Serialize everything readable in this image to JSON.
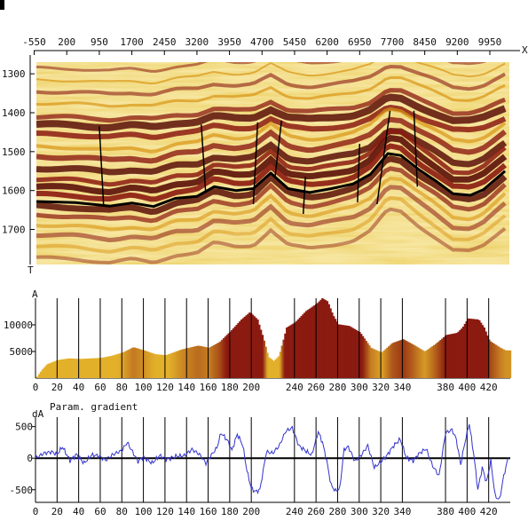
{
  "chart_data": [
    {
      "type": "heatmap",
      "description_role": "seismic-section",
      "xlabel": "X",
      "ylabel": "T",
      "x_ticks": [
        "-550",
        "200",
        "950",
        "1700",
        "2450",
        "3200",
        "3950",
        "4700",
        "5450",
        "6200",
        "6950",
        "7700",
        "8450",
        "9200",
        "9950"
      ],
      "x_tick_values": [
        -550,
        200,
        950,
        1700,
        2450,
        3200,
        3950,
        4700,
        5450,
        6200,
        6950,
        7700,
        8450,
        9200,
        9950
      ],
      "xlim": [
        -500,
        10400
      ],
      "y_ticks": [
        "1300",
        "1400",
        "1500",
        "1600",
        "1700"
      ],
      "y_tick_values": [
        1300,
        1400,
        1500,
        1600,
        1700
      ],
      "ylim": [
        1270,
        1790
      ],
      "colormap": [
        "#fff6c8",
        "#f3cf4a",
        "#d99414",
        "#8b1a10",
        "#5a0f08"
      ],
      "horizon": {
        "name": "picked horizon",
        "color": "#000000",
        "x": [
          -500,
          400,
          1200,
          1700,
          2200,
          2700,
          3200,
          3600,
          4100,
          4500,
          4900,
          5300,
          5800,
          6300,
          6800,
          7200,
          7600,
          7900,
          8300,
          8700,
          9100,
          9500,
          9800,
          10300
        ],
        "t": [
          1628,
          1631,
          1640,
          1632,
          1641,
          1620,
          1615,
          1590,
          1600,
          1595,
          1555,
          1595,
          1605,
          1595,
          1583,
          1558,
          1505,
          1510,
          1545,
          1575,
          1608,
          1612,
          1598,
          1550
        ]
      },
      "faults": [
        {
          "x": [
            950,
            1050
          ],
          "t": [
            1435,
            1640
          ]
        },
        {
          "x": [
            3300,
            3400
          ],
          "t": [
            1430,
            1605
          ]
        },
        {
          "x": [
            4600,
            4500
          ],
          "t": [
            1425,
            1635
          ]
        },
        {
          "x": [
            5150,
            5000
          ],
          "t": [
            1420,
            1565
          ]
        },
        {
          "x": [
            5700,
            5650
          ],
          "t": [
            1565,
            1660
          ]
        },
        {
          "x": [
            6950,
            6900
          ],
          "t": [
            1480,
            1630
          ]
        },
        {
          "x": [
            7650,
            7350
          ],
          "t": [
            1395,
            1635
          ]
        },
        {
          "x": [
            8200,
            8280
          ],
          "t": [
            1395,
            1590
          ]
        }
      ]
    },
    {
      "type": "bar",
      "ylabel": "A",
      "x_ticks": [
        "0",
        "20",
        "40",
        "60",
        "80",
        "100",
        "120",
        "140",
        "160",
        "180",
        "200",
        "240",
        "260",
        "280",
        "300",
        "320",
        "340",
        "380",
        "400",
        "420"
      ],
      "xlim": [
        0,
        440
      ],
      "y_ticks": [
        "5000",
        "10000"
      ],
      "ylim": [
        0,
        15000
      ],
      "x": [
        0,
        5,
        10,
        20,
        30,
        40,
        60,
        70,
        80,
        90,
        100,
        110,
        120,
        135,
        150,
        160,
        170,
        180,
        190,
        198,
        205,
        210,
        215,
        220,
        225,
        232,
        240,
        250,
        260,
        265,
        270,
        275,
        280,
        290,
        300,
        310,
        320,
        330,
        340,
        350,
        360,
        370,
        380,
        390,
        395,
        400,
        410,
        415,
        420,
        430,
        435,
        440
      ],
      "values": [
        0,
        1500,
        2600,
        3400,
        3700,
        3600,
        3800,
        4200,
        4800,
        5800,
        5200,
        4500,
        4300,
        5400,
        6100,
        5700,
        6800,
        8800,
        11000,
        12400,
        11000,
        7800,
        4000,
        3200,
        4200,
        9500,
        10500,
        12600,
        14000,
        15000,
        14400,
        11800,
        10100,
        9800,
        8600,
        5700,
        4800,
        6600,
        7300,
        6200,
        5000,
        6400,
        8100,
        8500,
        9500,
        11200,
        11000,
        9500,
        7000,
        5700,
        5200,
        5200
      ],
      "color_low": "#e3b02a",
      "color_high": "#8b1a10"
    },
    {
      "type": "line",
      "title": "Param. gradient",
      "ylabel": "dA",
      "x_ticks": [
        "0",
        "20",
        "40",
        "60",
        "80",
        "100",
        "120",
        "140",
        "160",
        "180",
        "200",
        "240",
        "260",
        "280",
        "300",
        "320",
        "340",
        "380",
        "400",
        "420"
      ],
      "xlim": [
        0,
        440
      ],
      "y_ticks": [
        "500",
        "0",
        "-500"
      ],
      "ylim": [
        -700,
        650
      ],
      "series": [
        {
          "color": "#3333cc",
          "x": [
            0,
            8,
            15,
            20,
            25,
            32,
            38,
            45,
            52,
            58,
            65,
            72,
            80,
            85,
            90,
            95,
            100,
            108,
            115,
            122,
            130,
            138,
            145,
            152,
            158,
            163,
            168,
            172,
            178,
            182,
            187,
            192,
            196,
            200,
            204,
            208,
            214,
            220,
            226,
            232,
            238,
            244,
            250,
            256,
            262,
            266,
            270,
            274,
            278,
            282,
            286,
            290,
            296,
            302,
            308,
            314,
            320,
            326,
            332,
            338,
            344,
            350,
            356,
            362,
            368,
            374,
            380,
            386,
            390,
            394,
            398,
            402,
            406,
            410,
            414,
            418,
            422,
            426,
            430,
            434,
            438
          ],
          "values": [
            0,
            80,
            100,
            60,
            180,
            -40,
            60,
            -80,
            50,
            40,
            -30,
            60,
            120,
            250,
            100,
            -50,
            20,
            -80,
            40,
            -20,
            30,
            40,
            140,
            60,
            -80,
            50,
            160,
            400,
            280,
            120,
            380,
            210,
            -200,
            -480,
            -530,
            -500,
            100,
            80,
            200,
            430,
            480,
            200,
            120,
            50,
            420,
            250,
            -50,
            -430,
            -520,
            -480,
            140,
            180,
            -50,
            50,
            200,
            -150,
            -60,
            50,
            200,
            300,
            0,
            -40,
            80,
            150,
            -120,
            -280,
            400,
            450,
            300,
            -100,
            250,
            550,
            80,
            -500,
            -150,
            -380,
            -40,
            -600,
            -660,
            -280,
            0
          ]
        }
      ]
    }
  ]
}
